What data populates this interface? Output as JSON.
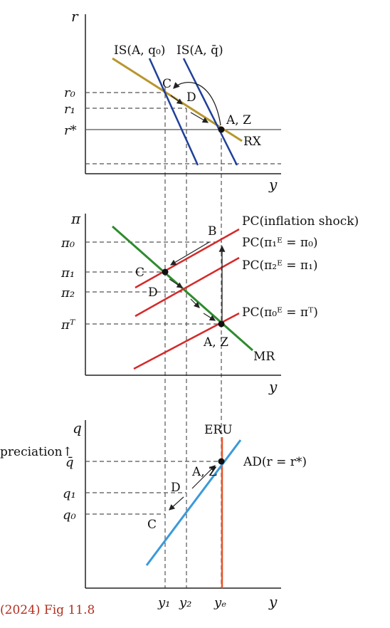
{
  "colors": {
    "is_line": "#1f3f9a",
    "rx_line": "#b8962e",
    "mr_line": "#2e8b2e",
    "pc_line": "#d42a2a",
    "ad_line": "#3a9ad9",
    "eru_line": "#e8552a",
    "axis": "#222222",
    "guide": "#555555",
    "source": "#b03020"
  },
  "panel_top": {
    "y_axis_label": "r",
    "x_axis_label": "y",
    "tick_r0": "r₀",
    "tick_r1": "r₁",
    "tick_rstar": "r*",
    "is_q0_label": "IS(A, q₀)",
    "is_qbar_label": "IS(A, q̄)",
    "rx_label": "RX",
    "point_c": "C",
    "point_d": "D",
    "point_az": "A, Z"
  },
  "panel_mid": {
    "y_axis_label": "π",
    "x_axis_label": "y",
    "tick_pi0": "π₀",
    "tick_pi1": "π₁",
    "tick_pi2": "π₂",
    "tick_piT": "πᵀ",
    "pc_shock_label": "PC(inflation shock)",
    "pc1_label": "PC(π₁ᴱ = π₀)",
    "pc2_label": "PC(π₂ᴱ = π₁)",
    "pc0_label": "PC(π₀ᴱ = πᵀ)",
    "mr_label": "MR",
    "point_b": "B",
    "point_c": "C",
    "point_d": "D",
    "point_az": "A, Z"
  },
  "panel_bot": {
    "y_axis_label": "q",
    "x_axis_label": "y",
    "depreciation_label": "preciation↑",
    "tick_qbar": "q̄",
    "tick_q1": "q₁",
    "tick_q0": "q₀",
    "eru_label": "ERU",
    "ad_label": "AD(r = r*)",
    "point_c": "C",
    "point_d": "D",
    "point_az": "A, Z",
    "x_tick_y1": "y₁",
    "x_tick_y2": "y₂",
    "x_tick_ye": "yₑ"
  },
  "source_note": "(2024) Fig 11.8"
}
